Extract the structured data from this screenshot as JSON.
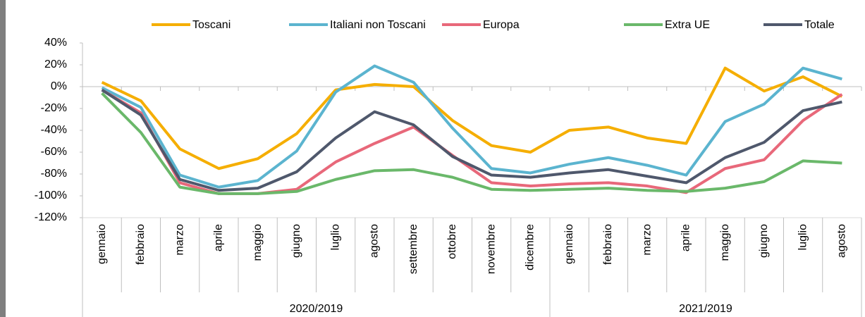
{
  "chart_data": {
    "type": "line",
    "category_groups": [
      {
        "label": "2020/2019",
        "categories": [
          "gennaio",
          "febbraio",
          "marzo",
          "aprile",
          "maggio",
          "giugno",
          "luglio",
          "agosto",
          "settembre",
          "ottobre",
          "novembre",
          "dicembre"
        ]
      },
      {
        "label": "2021/2019",
        "categories": [
          "gennaio",
          "febbraio",
          "marzo",
          "aprile",
          "maggio",
          "giugno",
          "luglio",
          "agosto"
        ]
      }
    ],
    "series": [
      {
        "name": "Toscani",
        "color": "#f5ae00",
        "values": [
          4,
          -13,
          -57,
          -75,
          -66,
          -43,
          -3,
          2,
          0,
          -31,
          -54,
          -60,
          -40,
          -37,
          -47,
          -52,
          17,
          -4,
          9,
          -9
        ]
      },
      {
        "name": "Italiani non Toscani",
        "color": "#5bb4cf",
        "values": [
          -1,
          -19,
          -81,
          -92,
          -86,
          -59,
          -5,
          19,
          4,
          -38,
          -75,
          -79,
          -71,
          -65,
          -72,
          -81,
          -32,
          -16,
          17,
          7
        ]
      },
      {
        "name": "Europa",
        "color": "#e8687a",
        "values": [
          -3,
          -24,
          -88,
          -98,
          -98,
          -94,
          -69,
          -52,
          -37,
          -63,
          -88,
          -91,
          -89,
          -88,
          -91,
          -97,
          -75,
          -67,
          -31,
          -7
        ]
      },
      {
        "name": "Extra UE",
        "color": "#6ab86a",
        "values": [
          -6,
          -42,
          -92,
          -98,
          -98,
          -96,
          -85,
          -77,
          -76,
          -83,
          -94,
          -95,
          -94,
          -93,
          -95,
          -96,
          -93,
          -87,
          -68,
          -70
        ]
      },
      {
        "name": "Totale",
        "color": "#4f586c",
        "values": [
          -3,
          -26,
          -85,
          -95,
          -93,
          -78,
          -47,
          -23,
          -35,
          -64,
          -81,
          -83,
          -79,
          -76,
          -82,
          -88,
          -65,
          -51,
          -22,
          -14
        ]
      }
    ],
    "ylim": [
      -120,
      40
    ],
    "yticks": [
      {
        "value": -120,
        "label": "-120%"
      },
      {
        "value": -100,
        "label": "-100%"
      },
      {
        "value": -80,
        "label": "-80%"
      },
      {
        "value": -60,
        "label": "-60%"
      },
      {
        "value": -40,
        "label": "-40%"
      },
      {
        "value": -20,
        "label": "-20%"
      },
      {
        "value": 0,
        "label": "0%"
      },
      {
        "value": 20,
        "label": "20%"
      },
      {
        "value": 40,
        "label": "40%"
      }
    ],
    "legend": "top"
  }
}
